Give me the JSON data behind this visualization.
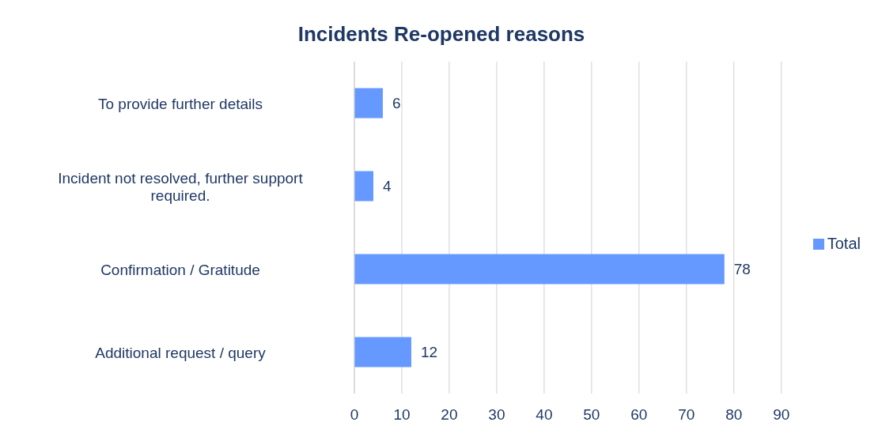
{
  "chart_data": {
    "type": "bar",
    "orientation": "horizontal",
    "title": "Incidents Re-opened reasons",
    "categories": [
      "To provide further details",
      "Incident not resolved, further support required.",
      "Confirmation / Gratitude ",
      "Additional request / query"
    ],
    "series": [
      {
        "name": "Total",
        "color": "#6699ff",
        "values": [
          6,
          4,
          78,
          12
        ]
      }
    ],
    "xlim": [
      0,
      90
    ],
    "xticks": [
      0,
      10,
      20,
      30,
      40,
      50,
      60,
      70,
      80,
      90
    ],
    "grid": "x",
    "legend": "right",
    "data_labels": true
  }
}
